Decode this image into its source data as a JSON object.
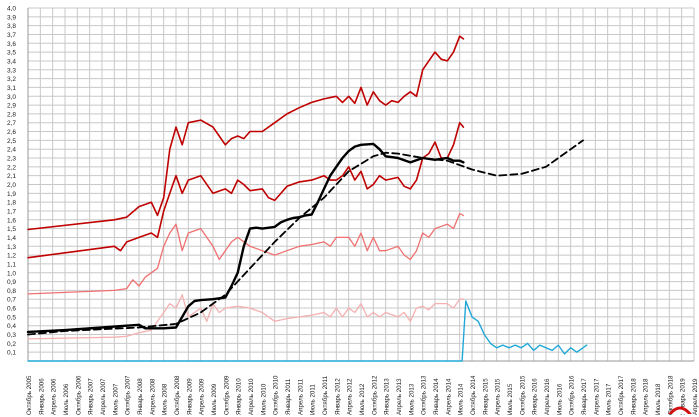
{
  "chart_data": {
    "type": "line",
    "title": "",
    "xlabel": "",
    "ylabel": "",
    "ylim": [
      0,
      4.0
    ],
    "y_ticks": [
      "0,1",
      "0,2",
      "0,3",
      "0,4",
      "0,5",
      "0,6",
      "0,7",
      "0,8",
      "0,9",
      "1,0",
      "1,1",
      "1,2",
      "1,3",
      "1,4",
      "1,5",
      "1,6",
      "1,7",
      "1,8",
      "1,9",
      "2,0",
      "2,1",
      "2,2",
      "2,3",
      "2,4",
      "2,5",
      "2,6",
      "2,7",
      "2,8",
      "2,9",
      "3,0",
      "3,1",
      "3,2",
      "3,3",
      "3,4",
      "3,5",
      "3,6",
      "3,7",
      "3,8",
      "3,9",
      "4,0"
    ],
    "x_ticks": [
      "Октябрь 2005",
      "Январь 2006",
      "Апрель 2006",
      "Июль 2006",
      "Октябрь 2006",
      "Январь 2007",
      "Апрель 2007",
      "Июль 2007",
      "Октябрь 2007",
      "Январь 2008",
      "Апрель 2008",
      "Июль 2008",
      "Октябрь 2008",
      "Январь 2009",
      "Апрель 2009",
      "Июль 2009",
      "Октябрь 2009",
      "Январь 2010",
      "Апрель 2010",
      "Июль 2010",
      "Октябрь 2010",
      "Январь 2011",
      "Апрель 2011",
      "Июль 2011",
      "Октябрь 2011",
      "Январь 2012",
      "Апрель 2012",
      "Июль 2012",
      "Октябрь 2012",
      "Январь 2013",
      "Апрель 2013",
      "Июль 2013",
      "Октябрь 2013",
      "Январь 2014",
      "Апрель 2014",
      "Июль 2014",
      "Октябрь 2014",
      "Январь 2015",
      "Апрель 2015",
      "Июль 2015",
      "Октябрь 2015",
      "Январь 2016",
      "Апрель 2016",
      "Июль 2016",
      "Октябрь 2016",
      "Январь 2017",
      "Апрель 2017",
      "Июль 2017",
      "Октябрь 2017",
      "Январь 2018",
      "Апрель 2018",
      "Июль 2018",
      "Октябрь 2018",
      "Январь 2019",
      "Апрель 2019"
    ],
    "grid": true,
    "series": [
      {
        "color": "#c00000",
        "width": 1.6,
        "style": "solid",
        "points": [
          [
            0,
            1.49
          ],
          [
            7,
            1.6
          ],
          [
            8,
            1.63
          ],
          [
            9,
            1.75
          ],
          [
            10,
            1.8
          ],
          [
            10.5,
            1.65
          ],
          [
            11,
            1.85
          ],
          [
            11.5,
            2.4
          ],
          [
            12,
            2.65
          ],
          [
            12.5,
            2.45
          ],
          [
            13,
            2.7
          ],
          [
            14,
            2.73
          ],
          [
            15,
            2.65
          ],
          [
            15.5,
            2.55
          ],
          [
            16,
            2.45
          ],
          [
            16.5,
            2.52
          ],
          [
            17,
            2.55
          ],
          [
            17.5,
            2.52
          ],
          [
            18,
            2.6
          ],
          [
            19,
            2.6
          ],
          [
            20,
            2.7
          ],
          [
            21,
            2.8
          ],
          [
            22,
            2.87
          ],
          [
            23,
            2.93
          ],
          [
            24,
            2.97
          ],
          [
            25,
            3.0
          ],
          [
            25.5,
            2.93
          ],
          [
            26,
            3.0
          ],
          [
            26.5,
            2.92
          ],
          [
            27,
            3.1
          ],
          [
            27.5,
            2.9
          ],
          [
            28,
            3.05
          ],
          [
            28.5,
            2.95
          ],
          [
            29,
            2.9
          ],
          [
            29.5,
            2.95
          ],
          [
            30,
            2.93
          ],
          [
            30.5,
            3.0
          ],
          [
            31,
            3.05
          ],
          [
            31.5,
            3.0
          ],
          [
            32,
            3.3
          ],
          [
            32.5,
            3.4
          ],
          [
            33,
            3.5
          ],
          [
            33.5,
            3.42
          ],
          [
            34,
            3.4
          ],
          [
            34.5,
            3.5
          ],
          [
            35,
            3.68
          ],
          [
            35.3,
            3.65
          ]
        ]
      },
      {
        "color": "#c00000",
        "width": 1.6,
        "style": "solid",
        "points": [
          [
            0,
            1.17
          ],
          [
            7,
            1.3
          ],
          [
            7.5,
            1.25
          ],
          [
            8,
            1.35
          ],
          [
            9,
            1.4
          ],
          [
            10,
            1.45
          ],
          [
            10.5,
            1.4
          ],
          [
            11,
            1.7
          ],
          [
            11.5,
            1.9
          ],
          [
            12,
            2.1
          ],
          [
            12.5,
            1.9
          ],
          [
            13,
            2.05
          ],
          [
            14,
            2.1
          ],
          [
            15,
            1.9
          ],
          [
            16,
            1.95
          ],
          [
            16.5,
            1.9
          ],
          [
            17,
            2.05
          ],
          [
            17.5,
            2.0
          ],
          [
            18,
            1.93
          ],
          [
            19,
            1.95
          ],
          [
            19.5,
            1.85
          ],
          [
            20,
            1.82
          ],
          [
            21,
            1.98
          ],
          [
            22,
            2.03
          ],
          [
            23,
            2.05
          ],
          [
            24,
            2.1
          ],
          [
            24.5,
            2.05
          ],
          [
            25,
            2.05
          ],
          [
            25.5,
            2.1
          ],
          [
            26,
            2.2
          ],
          [
            26.5,
            2.05
          ],
          [
            27,
            2.15
          ],
          [
            27.5,
            1.95
          ],
          [
            28,
            2.0
          ],
          [
            28.5,
            2.1
          ],
          [
            29,
            2.05
          ],
          [
            30,
            2.08
          ],
          [
            30.5,
            1.98
          ],
          [
            31,
            1.95
          ],
          [
            31.5,
            2.05
          ],
          [
            32,
            2.3
          ],
          [
            32.5,
            2.35
          ],
          [
            33,
            2.48
          ],
          [
            33.5,
            2.3
          ],
          [
            34,
            2.3
          ],
          [
            34.5,
            2.45
          ],
          [
            35,
            2.7
          ],
          [
            35.3,
            2.65
          ]
        ]
      },
      {
        "color": "#f07070",
        "width": 1.3,
        "style": "solid",
        "points": [
          [
            0,
            0.76
          ],
          [
            7,
            0.8
          ],
          [
            8,
            0.82
          ],
          [
            8.5,
            0.92
          ],
          [
            9,
            0.85
          ],
          [
            9.5,
            0.95
          ],
          [
            10,
            1.0
          ],
          [
            10.5,
            1.05
          ],
          [
            11,
            1.3
          ],
          [
            11.5,
            1.45
          ],
          [
            12,
            1.55
          ],
          [
            12.5,
            1.25
          ],
          [
            13,
            1.45
          ],
          [
            14,
            1.5
          ],
          [
            15,
            1.3
          ],
          [
            15.5,
            1.15
          ],
          [
            16,
            1.25
          ],
          [
            16.5,
            1.35
          ],
          [
            17,
            1.4
          ],
          [
            18,
            1.3
          ],
          [
            19,
            1.25
          ],
          [
            20,
            1.2
          ],
          [
            21,
            1.25
          ],
          [
            22,
            1.3
          ],
          [
            23,
            1.32
          ],
          [
            24,
            1.35
          ],
          [
            24.5,
            1.3
          ],
          [
            25,
            1.4
          ],
          [
            26,
            1.4
          ],
          [
            26.5,
            1.3
          ],
          [
            27,
            1.45
          ],
          [
            27.5,
            1.25
          ],
          [
            28,
            1.4
          ],
          [
            28.5,
            1.25
          ],
          [
            29,
            1.25
          ],
          [
            30,
            1.3
          ],
          [
            30.5,
            1.2
          ],
          [
            31,
            1.15
          ],
          [
            31.5,
            1.25
          ],
          [
            32,
            1.45
          ],
          [
            32.5,
            1.4
          ],
          [
            33,
            1.5
          ],
          [
            34,
            1.55
          ],
          [
            34.5,
            1.5
          ],
          [
            35,
            1.67
          ],
          [
            35.3,
            1.65
          ]
        ]
      },
      {
        "color": "#f5b0b0",
        "width": 1.3,
        "style": "solid",
        "points": [
          [
            0,
            0.25
          ],
          [
            7,
            0.27
          ],
          [
            8,
            0.28
          ],
          [
            9,
            0.32
          ],
          [
            10,
            0.35
          ],
          [
            10.5,
            0.45
          ],
          [
            11,
            0.55
          ],
          [
            11.5,
            0.65
          ],
          [
            12,
            0.6
          ],
          [
            12.5,
            0.75
          ],
          [
            13,
            0.5
          ],
          [
            13.5,
            0.55
          ],
          [
            14,
            0.6
          ],
          [
            14.5,
            0.45
          ],
          [
            15,
            0.65
          ],
          [
            15.5,
            0.55
          ],
          [
            16,
            0.6
          ],
          [
            17,
            0.62
          ],
          [
            18,
            0.6
          ],
          [
            19,
            0.55
          ],
          [
            20,
            0.45
          ],
          [
            21,
            0.48
          ],
          [
            22,
            0.5
          ],
          [
            23,
            0.52
          ],
          [
            24,
            0.55
          ],
          [
            24.5,
            0.5
          ],
          [
            25,
            0.6
          ],
          [
            25.5,
            0.5
          ],
          [
            26,
            0.6
          ],
          [
            26.5,
            0.55
          ],
          [
            27,
            0.65
          ],
          [
            27.5,
            0.5
          ],
          [
            28,
            0.55
          ],
          [
            28.5,
            0.5
          ],
          [
            29,
            0.55
          ],
          [
            30,
            0.5
          ],
          [
            30.5,
            0.55
          ],
          [
            31,
            0.45
          ],
          [
            31.5,
            0.6
          ],
          [
            32,
            0.62
          ],
          [
            32.5,
            0.58
          ],
          [
            33,
            0.65
          ],
          [
            34,
            0.65
          ],
          [
            34.5,
            0.6
          ],
          [
            35,
            0.7
          ],
          [
            35.3,
            0.7
          ]
        ]
      },
      {
        "color": "#000000",
        "width": 2.4,
        "style": "solid",
        "points": [
          [
            0,
            0.33
          ],
          [
            3,
            0.35
          ],
          [
            6,
            0.38
          ],
          [
            9,
            0.41
          ],
          [
            9.5,
            0.37
          ],
          [
            11,
            0.37
          ],
          [
            12,
            0.38
          ],
          [
            12.5,
            0.5
          ],
          [
            13,
            0.62
          ],
          [
            13.5,
            0.68
          ],
          [
            14,
            0.69
          ],
          [
            15,
            0.7
          ],
          [
            16,
            0.72
          ],
          [
            16.5,
            0.85
          ],
          [
            17,
            1.0
          ],
          [
            17.5,
            1.3
          ],
          [
            18,
            1.5
          ],
          [
            18.5,
            1.51
          ],
          [
            19,
            1.5
          ],
          [
            20,
            1.52
          ],
          [
            20.5,
            1.57
          ],
          [
            21,
            1.6
          ],
          [
            21.5,
            1.62
          ],
          [
            22,
            1.63
          ],
          [
            22.5,
            1.65
          ],
          [
            23,
            1.66
          ],
          [
            23.5,
            1.8
          ],
          [
            24,
            1.95
          ],
          [
            24.5,
            2.1
          ],
          [
            25,
            2.2
          ],
          [
            25.5,
            2.3
          ],
          [
            26,
            2.38
          ],
          [
            26.5,
            2.43
          ],
          [
            27,
            2.45
          ],
          [
            28,
            2.46
          ],
          [
            28.5,
            2.4
          ],
          [
            29,
            2.32
          ],
          [
            30,
            2.3
          ],
          [
            31,
            2.25
          ],
          [
            32,
            2.3
          ],
          [
            33,
            2.28
          ],
          [
            34,
            2.3
          ],
          [
            34.5,
            2.27
          ],
          [
            35,
            2.27
          ],
          [
            35.3,
            2.25
          ]
        ]
      },
      {
        "color": "#000000",
        "width": 1.8,
        "style": "dashed",
        "points": [
          [
            0,
            0.3
          ],
          [
            3,
            0.34
          ],
          [
            6,
            0.36
          ],
          [
            9,
            0.38
          ],
          [
            12,
            0.42
          ],
          [
            14,
            0.55
          ],
          [
            16,
            0.75
          ],
          [
            18,
            1.05
          ],
          [
            20,
            1.35
          ],
          [
            22,
            1.62
          ],
          [
            24,
            1.85
          ],
          [
            26,
            2.15
          ],
          [
            28,
            2.32
          ],
          [
            29,
            2.36
          ],
          [
            30,
            2.35
          ],
          [
            32,
            2.3
          ],
          [
            34,
            2.27
          ],
          [
            36,
            2.17
          ],
          [
            38,
            2.1
          ],
          [
            40,
            2.12
          ],
          [
            42,
            2.2
          ],
          [
            44,
            2.4
          ],
          [
            45,
            2.5
          ]
        ]
      },
      {
        "color": "#20a8d8",
        "width": 1.4,
        "style": "solid",
        "points": [
          [
            0,
            0.0
          ],
          [
            35.2,
            0.0
          ],
          [
            35.5,
            0.68
          ],
          [
            36,
            0.5
          ],
          [
            36.5,
            0.45
          ],
          [
            37,
            0.3
          ],
          [
            37.5,
            0.2
          ],
          [
            38,
            0.15
          ],
          [
            38.5,
            0.18
          ],
          [
            39,
            0.15
          ],
          [
            39.5,
            0.18
          ],
          [
            40,
            0.15
          ],
          [
            40.5,
            0.2
          ],
          [
            41,
            0.12
          ],
          [
            41.5,
            0.18
          ],
          [
            42,
            0.15
          ],
          [
            42.5,
            0.12
          ],
          [
            43,
            0.18
          ],
          [
            43.5,
            0.08
          ],
          [
            44,
            0.15
          ],
          [
            44.5,
            0.1
          ],
          [
            45,
            0.15
          ],
          [
            45.3,
            0.18
          ]
        ]
      }
    ]
  }
}
